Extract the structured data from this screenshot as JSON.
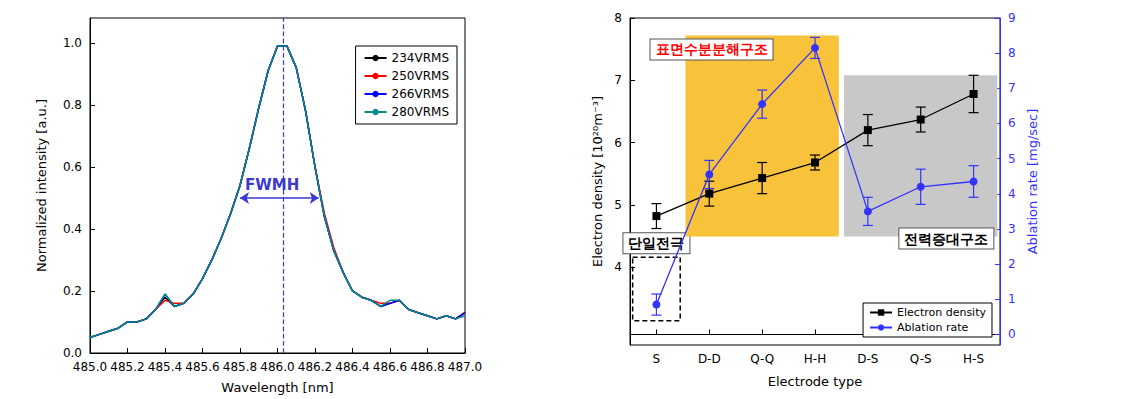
{
  "chart_data": [
    {
      "type": "line",
      "xlabel": "Wavelength [nm]",
      "ylabel": "Normalized intensity [a.u.]",
      "x": [
        485.0,
        485.05,
        485.1,
        485.15,
        485.2,
        485.25,
        485.3,
        485.35,
        485.4,
        485.45,
        485.5,
        485.55,
        485.6,
        485.65,
        485.7,
        485.75,
        485.8,
        485.85,
        485.9,
        485.95,
        486.0,
        486.05,
        486.1,
        486.15,
        486.2,
        486.25,
        486.3,
        486.35,
        486.4,
        486.45,
        486.5,
        486.55,
        486.6,
        486.65,
        486.7,
        486.75,
        486.8,
        486.85,
        486.9,
        486.95,
        487.0
      ],
      "series": [
        {
          "name": "234VRMS",
          "color": "#000000",
          "values": [
            0.05,
            0.06,
            0.07,
            0.08,
            0.1,
            0.1,
            0.11,
            0.14,
            0.18,
            0.15,
            0.16,
            0.19,
            0.24,
            0.3,
            0.37,
            0.45,
            0.54,
            0.66,
            0.79,
            0.91,
            0.99,
            0.99,
            0.92,
            0.78,
            0.6,
            0.44,
            0.33,
            0.26,
            0.2,
            0.18,
            0.17,
            0.15,
            0.16,
            0.17,
            0.14,
            0.13,
            0.12,
            0.11,
            0.12,
            0.11,
            0.13
          ]
        },
        {
          "name": "250VRMS",
          "color": "#ff0000",
          "values": [
            0.05,
            0.06,
            0.07,
            0.08,
            0.1,
            0.1,
            0.11,
            0.14,
            0.17,
            0.16,
            0.16,
            0.19,
            0.24,
            0.3,
            0.37,
            0.45,
            0.54,
            0.66,
            0.79,
            0.91,
            0.99,
            0.99,
            0.92,
            0.78,
            0.6,
            0.45,
            0.34,
            0.26,
            0.2,
            0.18,
            0.17,
            0.16,
            0.16,
            0.17,
            0.14,
            0.13,
            0.12,
            0.11,
            0.12,
            0.11,
            0.13
          ]
        },
        {
          "name": "266VRMS",
          "color": "#0000ff",
          "values": [
            0.05,
            0.06,
            0.07,
            0.08,
            0.1,
            0.1,
            0.11,
            0.14,
            0.19,
            0.15,
            0.16,
            0.19,
            0.24,
            0.3,
            0.37,
            0.45,
            0.54,
            0.66,
            0.79,
            0.91,
            0.99,
            0.99,
            0.92,
            0.78,
            0.6,
            0.44,
            0.33,
            0.26,
            0.2,
            0.18,
            0.17,
            0.15,
            0.16,
            0.17,
            0.14,
            0.13,
            0.12,
            0.11,
            0.12,
            0.11,
            0.13
          ]
        },
        {
          "name": "280VRMS",
          "color": "#008b8b",
          "values": [
            0.05,
            0.06,
            0.07,
            0.08,
            0.1,
            0.1,
            0.11,
            0.14,
            0.19,
            0.15,
            0.16,
            0.19,
            0.24,
            0.3,
            0.37,
            0.45,
            0.54,
            0.66,
            0.79,
            0.91,
            0.99,
            0.99,
            0.92,
            0.78,
            0.6,
            0.44,
            0.33,
            0.26,
            0.2,
            0.18,
            0.17,
            0.15,
            0.17,
            0.17,
            0.14,
            0.13,
            0.12,
            0.11,
            0.12,
            0.11,
            0.12
          ]
        }
      ],
      "marker": "none",
      "xlim": [
        485.0,
        487.0
      ],
      "xticks": [
        {
          "value": 485.0,
          "label": "485.0"
        },
        485.2,
        485.4,
        485.6,
        485.8,
        {
          "value": 486.0,
          "label": "486.0"
        },
        486.2,
        486.4,
        486.6,
        486.8,
        {
          "value": 487.0,
          "label": "487.0"
        }
      ],
      "ylim": [
        0,
        1.08
      ],
      "yticks": [
        {
          "value": 0,
          "label": "0.0"
        },
        0.2,
        0.4,
        0.6,
        0.8,
        {
          "value": 1,
          "label": "1.0"
        }
      ],
      "peak_x": 486.03,
      "fwhm": {
        "label": "FWMH",
        "from": 485.8,
        "to": 486.22,
        "y": 0.5
      },
      "grid": false,
      "legend": "upper right"
    },
    {
      "type": "line",
      "xlabel": "Electrode type",
      "ylabel": "Electron density [10²⁰m⁻³]",
      "y2label": "Ablation rate [mg/sec]",
      "categories": [
        "S",
        "D-D",
        "Q-Q",
        "H-H",
        "D-S",
        "Q-S",
        "H-S"
      ],
      "series": [
        {
          "name": "Electron density",
          "color": "#000000",
          "marker": "square",
          "values": [
            4.82,
            5.18,
            5.43,
            5.68,
            6.2,
            6.37,
            6.78
          ],
          "errors": [
            0.2,
            0.2,
            0.25,
            0.12,
            0.25,
            0.2,
            0.3
          ]
        },
        {
          "name": "Ablation rate",
          "color": "#3333ff",
          "marker": "circle",
          "axis": "y2",
          "values": [
            0.85,
            4.55,
            6.55,
            8.15,
            3.5,
            4.2,
            4.35
          ],
          "errors": [
            0.3,
            0.4,
            0.4,
            0.3,
            0.4,
            0.5,
            0.45
          ]
        }
      ],
      "ylim": [
        2.75,
        8
      ],
      "yticks": [
        4,
        5,
        6,
        7,
        8
      ],
      "y2lim": [
        -0.3,
        9
      ],
      "y2ticks": [
        0,
        1,
        2,
        3,
        4,
        5,
        6,
        7,
        8,
        9
      ],
      "annotations": [
        {
          "from": "S",
          "to": "S",
          "y": [
            3.14,
            4.16
          ],
          "line_style": "dashed",
          "color": "#000000",
          "label": {
            "text": "단일전극",
            "color": "#000000"
          }
        },
        {
          "from": "D-D",
          "to": "H-H",
          "y": [
            4.49,
            7.72
          ],
          "color": "#f8c23a",
          "label": {
            "text": "표면수분분해구조",
            "color": "#ff0000"
          }
        },
        {
          "from": "D-S",
          "to": "H-S",
          "y": [
            4.49,
            7.08
          ],
          "color": "#c8c8c8",
          "label": {
            "text": "전력증대구조",
            "color": "#000000"
          }
        }
      ],
      "grid": false,
      "legend": "lower right"
    }
  ]
}
